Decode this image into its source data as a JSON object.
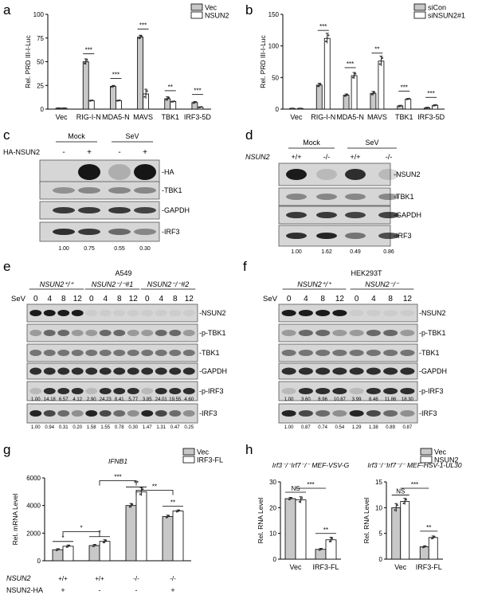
{
  "panels": {
    "a": {
      "letter": "a"
    },
    "b": {
      "letter": "b"
    },
    "c": {
      "letter": "c"
    },
    "d": {
      "letter": "d"
    },
    "e": {
      "letter": "e"
    },
    "f": {
      "letter": "f"
    },
    "g": {
      "letter": "g"
    },
    "h": {
      "letter": "h"
    }
  },
  "colors": {
    "gray_bar": "#c8c8c8",
    "white_bar": "#ffffff",
    "stroke": "#000000",
    "blot_bg": "#d6d6d6"
  },
  "chart_data": [
    {
      "panel": "a",
      "type": "bar",
      "ylabel": "Rel. PRD III-I-Luc",
      "ylim": [
        0,
        100
      ],
      "yticks": [
        "0",
        "25",
        "50",
        "75",
        "100"
      ],
      "categories": [
        "Vec",
        "RIG-I-N",
        "MDA5-N",
        "MAVS",
        "TBK1",
        "IRF3-5D"
      ],
      "series": [
        {
          "name": "Vec",
          "values": [
            1,
            50,
            24,
            76,
            11,
            7
          ]
        },
        {
          "name": "NSUN2",
          "values": [
            1,
            9,
            9,
            16,
            8,
            2
          ]
        }
      ],
      "significance": [
        "***",
        "***",
        "***",
        "**",
        "***"
      ]
    },
    {
      "panel": "b",
      "type": "bar",
      "ylabel": "Rel. PRD III-I-Luc",
      "ylim": [
        0,
        150
      ],
      "yticks": [
        "0",
        "50",
        "100",
        "150"
      ],
      "categories": [
        "Vec",
        "RIG-I-N",
        "MDA5-N",
        "MAVS",
        "TBK1",
        "IRF3-5D"
      ],
      "series": [
        {
          "name": "siCon",
          "values": [
            1,
            38,
            22,
            25,
            5,
            2
          ]
        },
        {
          "name": "siNSUN2#1",
          "values": [
            1,
            112,
            53,
            76,
            16,
            6
          ]
        }
      ],
      "significance": [
        "***",
        "***",
        "**",
        "***",
        "***"
      ]
    },
    {
      "panel": "g",
      "type": "bar",
      "title": "IFNB1",
      "ylabel": "Rel. mRNA Level",
      "ylim": [
        0,
        6000
      ],
      "yticks": [
        "0",
        "2000",
        "4000",
        "6000"
      ],
      "categories": [
        "+/+ +",
        "+/+ -",
        "-/- -",
        "-/- +"
      ],
      "series": [
        {
          "name": "Vec",
          "values": [
            800,
            1100,
            4000,
            3200
          ]
        },
        {
          "name": "IRF3-FL",
          "values": [
            1050,
            1400,
            5000,
            3600
          ]
        }
      ],
      "significance": [
        "*",
        "*",
        "**",
        "**"
      ],
      "between": [
        "*",
        "***",
        "**"
      ],
      "row_labels": {
        "nsun2": "NSUN2",
        "ha": "NSUN2-HA"
      },
      "nsun2": [
        "+/+",
        "+/+",
        "-/-",
        "-/-"
      ],
      "ha": [
        "+",
        "-",
        "-",
        "+"
      ]
    },
    {
      "panel": "h1",
      "type": "bar",
      "title": "Irf3⁻/⁻Irf7⁻/⁻ MEF-VSV-G",
      "ylabel": "Rel. RNA Level",
      "ylim": [
        0,
        30
      ],
      "yticks": [
        "0",
        "10",
        "20",
        "30"
      ],
      "categories": [
        "Vec",
        "IRF3-FL"
      ],
      "series": [
        {
          "name": "Vec",
          "values": [
            23.5,
            3.8
          ]
        },
        {
          "name": "NSUN2",
          "values": [
            23,
            7.5
          ]
        }
      ],
      "significance": [
        "NS",
        "**"
      ],
      "between": "***"
    },
    {
      "panel": "h2",
      "type": "bar",
      "title": "Irf3⁻/⁻Irf7⁻/⁻ MEF-HSV-1-UL30",
      "ylabel": "Rel. RNA Level",
      "ylim": [
        0,
        15
      ],
      "yticks": [
        "0",
        "5",
        "10",
        "15"
      ],
      "categories": [
        "Vec",
        "IRF3-FL"
      ],
      "series": [
        {
          "name": "Vec",
          "values": [
            10,
            2.4
          ]
        },
        {
          "name": "NSUN2",
          "values": [
            11.2,
            4.2
          ]
        }
      ],
      "significance": [
        "NS",
        "**"
      ],
      "between": "***"
    }
  ],
  "blots": {
    "c": {
      "groups": [
        "Mock",
        "SeV"
      ],
      "row_label": "HA-NSUN2",
      "signs": [
        "-",
        "+",
        "-",
        "+"
      ],
      "bands": [
        "-HA",
        "-TBK1",
        "-GAPDH",
        "-IRF3"
      ],
      "quant": [
        "1.00",
        "0.75",
        "0.55",
        "0.30"
      ]
    },
    "d": {
      "groups": [
        "Mock",
        "SeV"
      ],
      "row_label": "NSUN2",
      "signs": [
        "+/+",
        "-/-",
        "+/+",
        "-/-"
      ],
      "bands": [
        "-NSUN2",
        "-TBK1",
        "-GAPDH",
        "-IRF3"
      ],
      "quant": [
        "1.00",
        "1.62",
        "0.49",
        "0.86"
      ]
    },
    "e": {
      "title": "A549",
      "groups": [
        "NSUN2⁺/⁺",
        "NSUN2⁻/⁻#1",
        "NSUN2⁻/⁻#2"
      ],
      "row_label": "SeV",
      "times": [
        "0",
        "4",
        "8",
        "12",
        "0",
        "4",
        "8",
        "12",
        "0",
        "4",
        "8",
        "12"
      ],
      "bands": [
        "-NSUN2",
        "-p-TBK1",
        "-TBK1",
        "-GAPDH",
        "-p-IRF3",
        "-IRF3"
      ],
      "quant_pirf3": [
        "1.00",
        "14.18",
        "6.57",
        "4.12",
        "2.90",
        "24.23",
        "8.41",
        "5.77",
        "3.85",
        "24.01",
        "19.55",
        "4.60"
      ],
      "quant_irf3": [
        "1.00",
        "0.94",
        "0.31",
        "0.20",
        "1.58",
        "1.55",
        "0.78",
        "0.30",
        "1.47",
        "1.31",
        "0.47",
        "0.25"
      ]
    },
    "f": {
      "title": "HEK293T",
      "groups": [
        "NSUN2⁺/⁺",
        "NSUN2⁻/⁻"
      ],
      "row_label": "SeV",
      "times": [
        "0",
        "4",
        "8",
        "12",
        "0",
        "4",
        "8",
        "12"
      ],
      "bands": [
        "-NSUN2",
        "-p-TBK1",
        "-TBK1",
        "-GAPDH",
        "-p-IRF3",
        "-IRF3"
      ],
      "quant_pirf3": [
        "1.00",
        "3.60",
        "8.96",
        "10.87",
        "3.99",
        "8.46",
        "11.86",
        "18.30"
      ],
      "quant_irf3": [
        "1.00",
        "0.87",
        "0.74",
        "0.54",
        "1.29",
        "1.38",
        "0.89",
        "0.87"
      ]
    }
  }
}
